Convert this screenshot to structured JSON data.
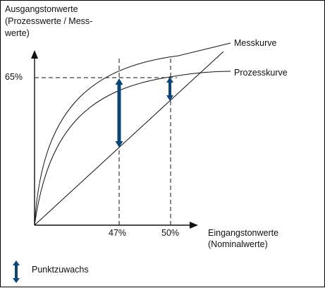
{
  "chart_data": {
    "type": "line",
    "ylabel": [
      "Ausgangstonwerte",
      "(Prozesswerte / Mess-",
      "werte)"
    ],
    "xlabel": [
      "Eingangstonwerte",
      "(Nominalwerte)"
    ],
    "ytick_label": "65%",
    "xtick_labels": [
      "47%",
      "50%"
    ],
    "series": [
      {
        "name": "Messkurve"
      },
      {
        "name": "Prozesskurve"
      }
    ],
    "markers": [
      {
        "x": 47,
        "from": 47,
        "to": 65
      },
      {
        "x": 50,
        "from": 50,
        "to": 63
      }
    ],
    "legend": {
      "label": "Punktzuwachs"
    },
    "colors": {
      "arrow": "#0e4577",
      "line": "#111111"
    },
    "grid": false
  }
}
